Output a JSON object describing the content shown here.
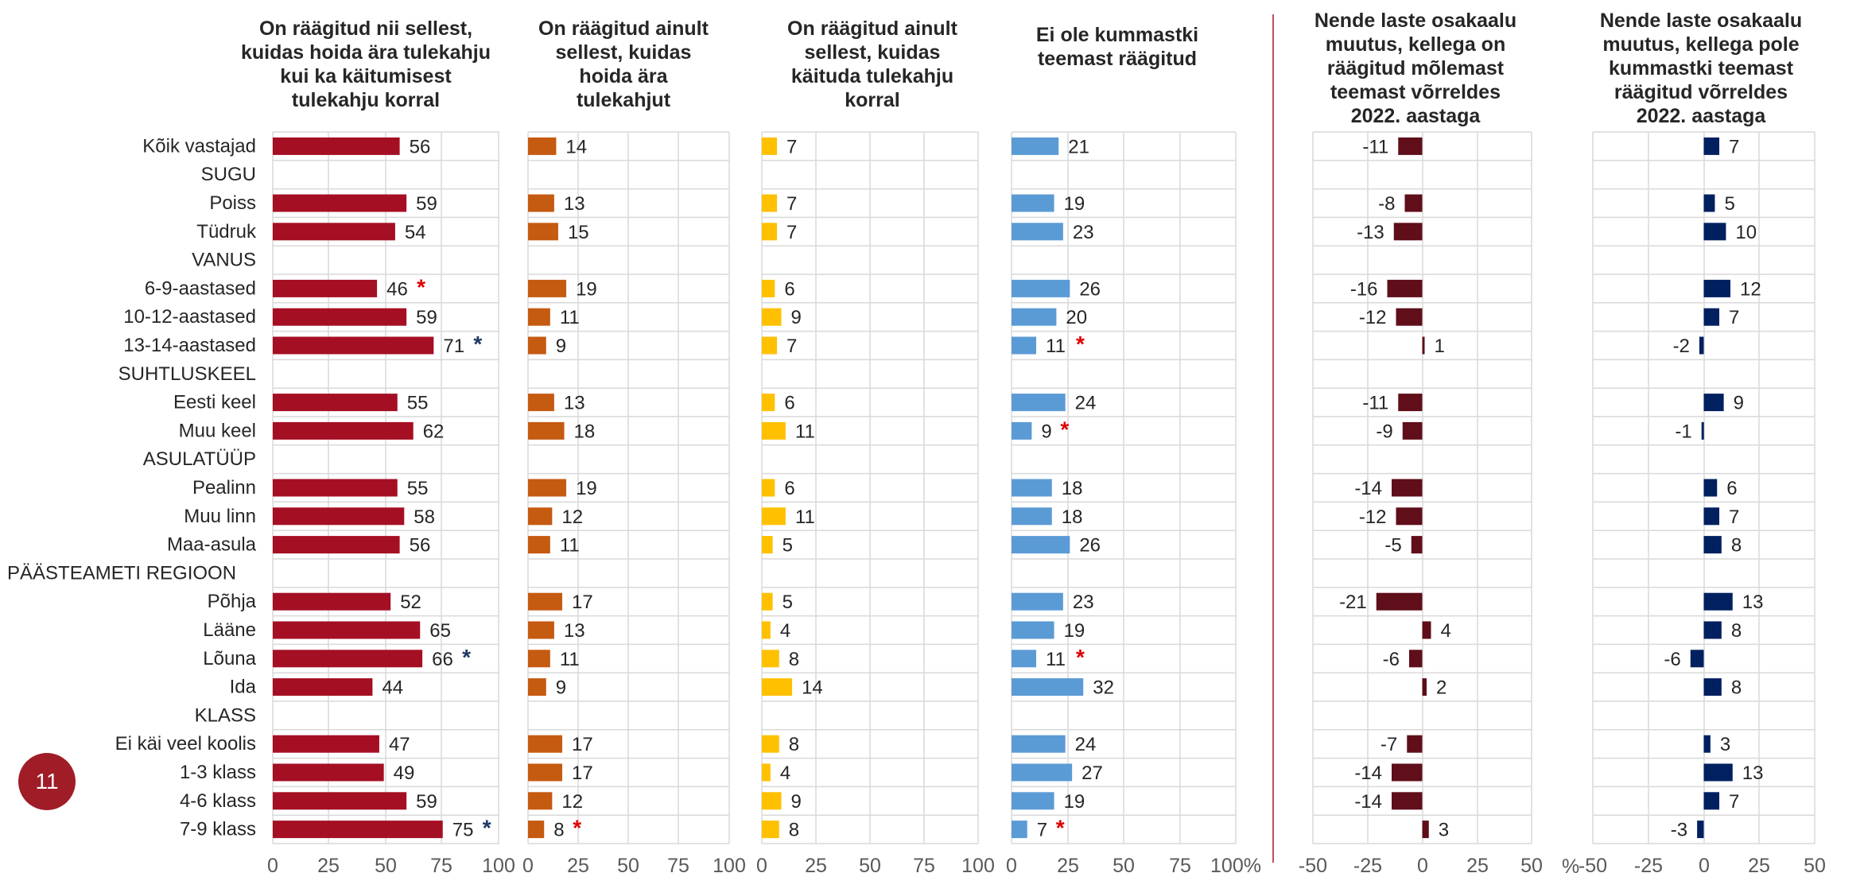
{
  "page_number": "11",
  "colors": {
    "panel1": "#a50f24",
    "panel2": "#c55a11",
    "panel3": "#ffc000",
    "panel4": "#5b9bd5",
    "panel5": "#5f0e1a",
    "panel6": "#002060",
    "star_red": "#e00000",
    "star_blue": "#1f3864",
    "grid": "#d9d9d9",
    "separator": "#c0505b"
  },
  "chart_data": [
    {
      "type": "bar",
      "orientation": "horizontal",
      "title": "On räägitud nii sellest, kuidas hoida ära tulekahju kui ka käitumisest tulekahju korral",
      "categories": [
        "Kõik vastajad",
        "SUGU",
        "Poiss",
        "Tüdruk",
        "VANUS",
        "6-9-aastased",
        "10-12-aastased",
        "13-14-aastased",
        "SUHTLUSKEEL",
        "Eesti keel",
        "Muu keel",
        "ASULATÜÜP",
        "Pealinn",
        "Muu linn",
        "Maa-asula",
        "PÄÄSTEAMETI REGIOON",
        "Põhja",
        "Lääne",
        "Lõuna",
        "Ida",
        "KLASS",
        "Ei käi veel koolis",
        "1-3 klass",
        "4-6 klass",
        "7-9 klass"
      ],
      "values": [
        56,
        null,
        59,
        54,
        null,
        46,
        59,
        71,
        null,
        55,
        62,
        null,
        55,
        58,
        56,
        null,
        52,
        65,
        66,
        44,
        null,
        47,
        49,
        59,
        75
      ],
      "labels": [
        "56",
        "",
        "59",
        "54",
        "",
        "46",
        "59",
        "71",
        "",
        "55",
        "62",
        "",
        "55",
        "58",
        "56",
        "",
        "52",
        "65",
        "66",
        "44",
        "",
        "47",
        "49",
        "59",
        "75"
      ],
      "markers": [
        {
          "row": 5,
          "symbol": "*",
          "color": "red"
        },
        {
          "row": 7,
          "symbol": "*",
          "color": "blue"
        },
        {
          "row": 18,
          "symbol": "*",
          "color": "blue"
        },
        {
          "row": 24,
          "symbol": "*",
          "color": "blue"
        }
      ],
      "xlim": [
        0,
        100
      ],
      "ticks": [
        "0",
        "25",
        "50",
        "75",
        "100"
      ],
      "grid": true
    },
    {
      "type": "bar",
      "orientation": "horizontal",
      "title": "On räägitud ainult sellest, kuidas hoida ära tulekahjut",
      "values": [
        14,
        null,
        13,
        15,
        null,
        19,
        11,
        9,
        null,
        13,
        18,
        null,
        19,
        12,
        11,
        null,
        17,
        13,
        11,
        9,
        null,
        17,
        17,
        12,
        8
      ],
      "labels": [
        "14",
        "",
        "13",
        "15",
        "",
        "19",
        "11",
        "9",
        "",
        "13",
        "18",
        "",
        "19",
        "12",
        "11",
        "",
        "17",
        "13",
        "11",
        "9",
        "",
        "17",
        "17",
        "12",
        "8"
      ],
      "markers": [
        {
          "row": 24,
          "symbol": "*",
          "color": "red"
        }
      ],
      "xlim": [
        0,
        100
      ],
      "ticks": [
        "0",
        "25",
        "50",
        "75",
        "100"
      ],
      "grid": true
    },
    {
      "type": "bar",
      "orientation": "horizontal",
      "title": "On räägitud ainult sellest, kuidas käituda tulekahju korral",
      "values": [
        7,
        null,
        7,
        7,
        null,
        6,
        9,
        7,
        null,
        6,
        11,
        null,
        6,
        11,
        5,
        null,
        5,
        4,
        8,
        14,
        null,
        8,
        4,
        9,
        8
      ],
      "labels": [
        "7",
        "",
        "7",
        "7",
        "",
        "6",
        "9",
        "7",
        "",
        "6",
        "11",
        "",
        "6",
        "11",
        "5",
        "",
        "5",
        "4",
        "8",
        "14",
        "",
        "8",
        "4",
        "9",
        "8"
      ],
      "markers": [],
      "xlim": [
        0,
        100
      ],
      "ticks": [
        "0",
        "25",
        "50",
        "75",
        "100"
      ],
      "grid": true
    },
    {
      "type": "bar",
      "orientation": "horizontal",
      "title": "Ei ole kummastki teemast räägitud",
      "values": [
        21,
        null,
        19,
        23,
        null,
        26,
        20,
        11,
        null,
        24,
        9,
        null,
        18,
        18,
        26,
        null,
        23,
        19,
        11,
        32,
        null,
        24,
        27,
        19,
        7
      ],
      "labels": [
        "21",
        "",
        "19",
        "23",
        "",
        "26",
        "20",
        "11",
        "",
        "24",
        "9",
        "",
        "18",
        "18",
        "26",
        "",
        "23",
        "19",
        "11",
        "32",
        "",
        "24",
        "27",
        "19",
        "7"
      ],
      "markers": [
        {
          "row": 7,
          "symbol": "*",
          "color": "red"
        },
        {
          "row": 10,
          "symbol": "*",
          "color": "red"
        },
        {
          "row": 18,
          "symbol": "*",
          "color": "red"
        },
        {
          "row": 24,
          "symbol": "*",
          "color": "red"
        }
      ],
      "xlim": [
        0,
        100
      ],
      "ticks": [
        "0",
        "25",
        "50",
        "75",
        "100%"
      ],
      "grid": true
    },
    {
      "type": "bar",
      "orientation": "horizontal",
      "title": "Nende laste osakaalu muutus, kellega on räägitud mõlemast teemast võrreldes 2022. aastaga",
      "values": [
        -11,
        null,
        -8,
        -13,
        null,
        -16,
        -12,
        1,
        null,
        -11,
        -9,
        null,
        -14,
        -12,
        -5,
        null,
        -21,
        4,
        -6,
        2,
        null,
        -7,
        -14,
        -14,
        3
      ],
      "labels": [
        "-11",
        "",
        "-8",
        "-13",
        "",
        "-16",
        "-12",
        "1",
        "",
        "-11",
        "-9",
        "",
        "-14",
        "-12",
        "-5",
        "",
        "-21",
        "4",
        "-6",
        "2",
        "",
        "-7",
        "-14",
        "-14",
        "3"
      ],
      "markers": [],
      "xlim": [
        -50,
        50
      ],
      "ticks": [
        "-50",
        "-25",
        "0",
        "25",
        "50"
      ],
      "grid": true
    },
    {
      "type": "bar",
      "orientation": "horizontal",
      "title": "Nende laste osakaalu muutus, kellega pole kummastki teemast räägitud võrreldes 2022. aastaga",
      "values": [
        7,
        null,
        5,
        10,
        null,
        12,
        7,
        -2,
        null,
        9,
        -1,
        null,
        6,
        7,
        8,
        null,
        13,
        8,
        -6,
        8,
        null,
        3,
        13,
        7,
        -3
      ],
      "labels": [
        "7",
        "",
        "5",
        "10",
        "",
        "12",
        "7",
        "-2",
        "",
        "9",
        "-1",
        "",
        "6",
        "7",
        "8",
        "",
        "13",
        "8",
        "-6",
        "8",
        "",
        "3",
        "13",
        "7",
        "-3"
      ],
      "markers": [],
      "xlim": [
        -50,
        50
      ],
      "ticks": [
        "-50",
        "-25",
        "0",
        "25",
        "50"
      ],
      "grid": true
    }
  ],
  "axis_unit": "%"
}
